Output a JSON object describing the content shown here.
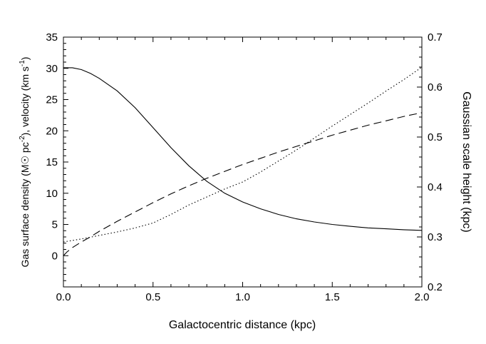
{
  "chart_data": {
    "type": "line",
    "xlabel": "Galactocentric distance (kpc)",
    "ylabel_left_parts": {
      "a": "Gas surface density (M",
      "b": " pc",
      "sup1": "-2",
      "c": "), velocity (km s",
      "sup2": "-1",
      "d": ")"
    },
    "ylabel_right": "Gaussian scale height (kpc)",
    "xlim": [
      0.0,
      2.0
    ],
    "ylim_left": [
      -5,
      35
    ],
    "ylim_right": [
      0.2,
      0.7
    ],
    "x_ticks": [
      "0.0",
      "0.5",
      "1.0",
      "1.5",
      "2.0"
    ],
    "y_left_ticks": [
      "0",
      "5",
      "10",
      "15",
      "20",
      "25",
      "30",
      "35"
    ],
    "y_right_ticks": [
      "0.2",
      "0.3",
      "0.4",
      "0.5",
      "0.6",
      "0.7"
    ],
    "grid": false,
    "series": [
      {
        "style": "solid",
        "axis": "left",
        "x": [
          0.0,
          0.05,
          0.1,
          0.15,
          0.2,
          0.3,
          0.4,
          0.5,
          0.6,
          0.7,
          0.8,
          0.9,
          1.0,
          1.1,
          1.2,
          1.3,
          1.4,
          1.5,
          1.6,
          1.7,
          1.8,
          1.9,
          2.0
        ],
        "y": [
          30.1,
          30.1,
          29.8,
          29.2,
          28.4,
          26.4,
          23.7,
          20.5,
          17.3,
          14.4,
          11.9,
          10.0,
          8.6,
          7.5,
          6.6,
          5.9,
          5.4,
          5.0,
          4.7,
          4.45,
          4.3,
          4.15,
          4.05
        ]
      },
      {
        "style": "dashed",
        "axis": "left",
        "x": [
          0.0,
          0.02,
          0.05,
          0.1,
          0.15,
          0.2,
          0.3,
          0.4,
          0.5,
          0.6,
          0.7,
          0.8,
          0.9,
          1.0,
          1.1,
          1.2,
          1.3,
          1.4,
          1.5,
          1.6,
          1.7,
          1.8,
          1.9,
          2.0
        ],
        "y": [
          0.0,
          0.6,
          1.3,
          2.2,
          3.0,
          3.9,
          5.5,
          7.0,
          8.5,
          9.9,
          11.2,
          12.4,
          13.5,
          14.6,
          15.6,
          16.6,
          17.5,
          18.4,
          19.3,
          20.1,
          20.9,
          21.6,
          22.3,
          22.9
        ]
      },
      {
        "style": "dotted",
        "axis": "right",
        "x": [
          0.0,
          0.1,
          0.2,
          0.3,
          0.4,
          0.5,
          0.6,
          0.7,
          0.8,
          0.9,
          1.0,
          1.1,
          1.2,
          1.3,
          1.4,
          1.5,
          1.6,
          1.7,
          1.8,
          1.9,
          2.0
        ],
        "y": [
          0.29,
          0.296,
          0.303,
          0.31,
          0.318,
          0.328,
          0.345,
          0.364,
          0.38,
          0.396,
          0.41,
          0.43,
          0.452,
          0.474,
          0.498,
          0.522,
          0.545,
          0.568,
          0.592,
          0.615,
          0.64
        ]
      }
    ]
  }
}
